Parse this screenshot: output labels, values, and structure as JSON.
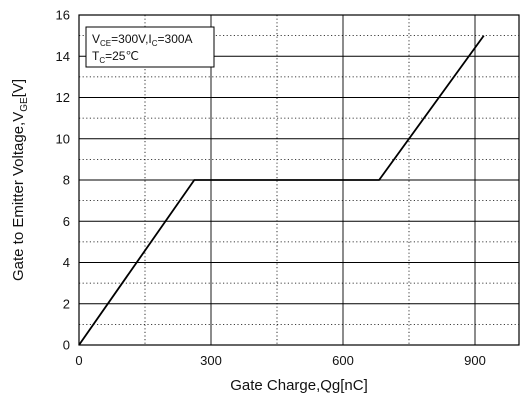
{
  "chart_data": {
    "type": "line",
    "xlabel": "Gate Charge,Qg[nC]",
    "ylabel": {
      "base": "Gate to Emitter Voltage,V",
      "sub": "GE",
      "unit": "[V]"
    },
    "xlim": [
      0,
      1000
    ],
    "ylim": [
      0,
      16
    ],
    "x_ticks": [
      0,
      300,
      600,
      900
    ],
    "x_minor_grid": [
      150,
      450,
      750
    ],
    "y_ticks": [
      0,
      2,
      4,
      6,
      8,
      10,
      12,
      14,
      16
    ],
    "y_minor_grid": [
      1,
      3,
      5,
      7,
      9,
      11,
      13,
      15
    ],
    "grid": true,
    "legend": {
      "placement": "top-left",
      "line1": [
        {
          "text": "V",
          "sub": false
        },
        {
          "text": "CE",
          "sub": true
        },
        {
          "text": "=300V,I",
          "sub": false
        },
        {
          "text": "C",
          "sub": true
        },
        {
          "text": "=300A",
          "sub": false
        }
      ],
      "line2": [
        {
          "text": "T",
          "sub": false
        },
        {
          "text": "C",
          "sub": true
        },
        {
          "text": "=25℃",
          "sub": false
        }
      ]
    },
    "series": [
      {
        "color": "#000000",
        "x": [
          0,
          262,
          682,
          920
        ],
        "y": [
          0,
          8,
          8,
          15
        ]
      }
    ]
  }
}
